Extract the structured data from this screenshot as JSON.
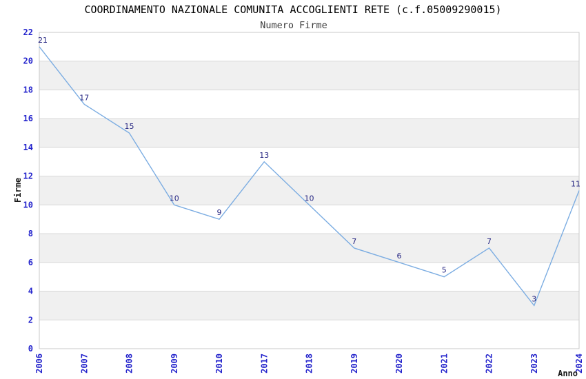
{
  "chart_data": {
    "type": "line",
    "title": "COORDINAMENTO NAZIONALE COMUNITA ACCOGLIENTI RETE (c.f.05009290015)",
    "subtitle": "Numero Firme",
    "xlabel": "Anno",
    "ylabel": "Firme",
    "categories": [
      "2006",
      "2007",
      "2008",
      "2009",
      "2010",
      "2017",
      "2018",
      "2019",
      "2020",
      "2021",
      "2022",
      "2023",
      "2024"
    ],
    "values": [
      21,
      17,
      15,
      10,
      9,
      13,
      10,
      7,
      6,
      5,
      7,
      3,
      11
    ],
    "ylim": [
      0,
      22
    ],
    "y_tick_step": 2,
    "x_tick_rotation": -90,
    "grid": "horizontal",
    "legend": "none",
    "band_pairs": [
      [
        2,
        4
      ],
      [
        6,
        8
      ],
      [
        10,
        12
      ],
      [
        14,
        16
      ],
      [
        18,
        20
      ]
    ],
    "colors": {
      "background": "#FFFFFF",
      "title": "#000000",
      "subtitle": "#3A3A3A",
      "tick_label": "#2323CC",
      "axis_title": "#1A1A1A",
      "data_label": "#252582",
      "line": "#7CADE2",
      "band": "#F0F0F0",
      "gridline": "#D7D7D7",
      "border": "#C9C9C9"
    }
  }
}
